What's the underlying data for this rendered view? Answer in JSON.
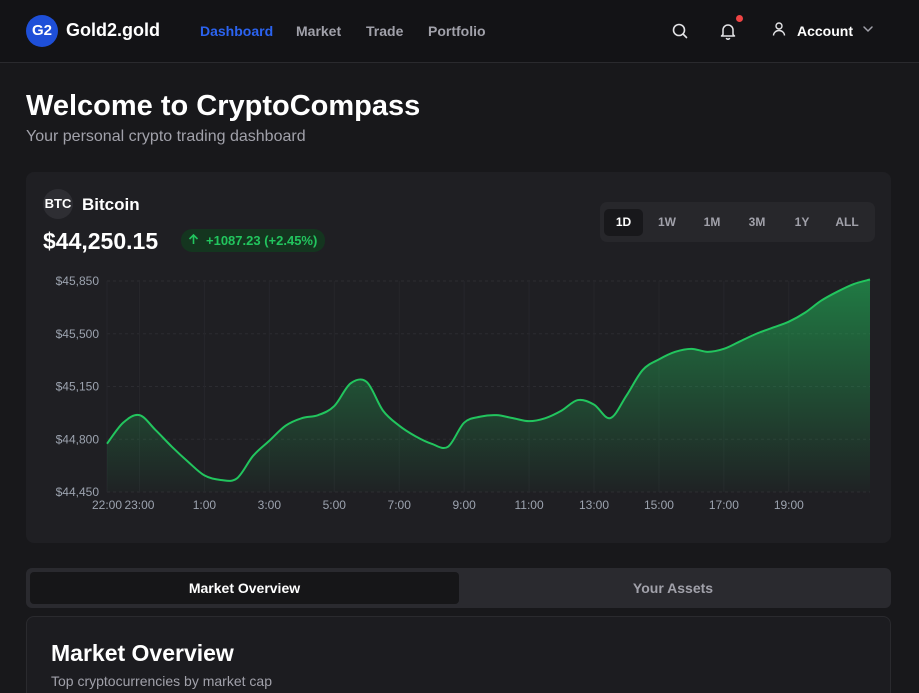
{
  "header": {
    "logo_badge": "G2",
    "brand": "Gold2.gold",
    "nav": [
      "Dashboard",
      "Market",
      "Trade",
      "Portfolio"
    ],
    "active_nav": "Dashboard",
    "icons": [
      "search-icon",
      "bell-icon",
      "user-icon",
      "chevron-down-icon"
    ],
    "account_label": "Account",
    "colors": {
      "accent": "#2b63f0",
      "notification_dot": "#ef4444"
    }
  },
  "welcome": {
    "title": "Welcome to CryptoCompass",
    "subtitle": "Your personal crypto trading dashboard"
  },
  "coin": {
    "symbol": "BTC",
    "name": "Bitcoin",
    "price": "$44,250.15",
    "change": "+1087.23 (+2.45%)",
    "change_icon": "arrow-up-icon",
    "change_color": "#22c55e"
  },
  "ranges": {
    "options": [
      "1D",
      "1W",
      "1M",
      "3M",
      "1Y",
      "ALL"
    ],
    "selected": "1D"
  },
  "chart_data": {
    "type": "area",
    "title": "",
    "xlabel": "",
    "ylabel": "",
    "ytick_labels": [
      "$45,850",
      "$45,500",
      "$45,150",
      "$44,800",
      "$44,450"
    ],
    "yticks": [
      45850,
      45500,
      45150,
      44800,
      44450
    ],
    "ylim": [
      44450,
      45850
    ],
    "xtick_labels": [
      "23:00",
      "1:00",
      "3:00",
      "5:00",
      "7:00",
      "9:00",
      "11:00",
      "13:00",
      "15:00",
      "17:00",
      "19:00",
      "22:00"
    ],
    "x": [
      22.5,
      23.0,
      23.5,
      24.0,
      24.5,
      25.0,
      25.5,
      26.0,
      26.5,
      27.0,
      27.5,
      28.0,
      28.5,
      29.0,
      29.5,
      30.0,
      30.5,
      31.0,
      31.5,
      32.0,
      32.5,
      33.0,
      33.5,
      34.0,
      34.5,
      35.0,
      35.5,
      36.0,
      36.5,
      37.0,
      37.5,
      38.0,
      38.5,
      39.0,
      39.5,
      40.0,
      40.5,
      41.0,
      41.5,
      42.0,
      42.5,
      43.0,
      43.5,
      44.0,
      44.5,
      45.0,
      45.5,
      46.0
    ],
    "values": [
      44770,
      44910,
      44960,
      44860,
      44750,
      44650,
      44560,
      44530,
      44540,
      44690,
      44790,
      44890,
      44940,
      44960,
      45020,
      45170,
      45180,
      44990,
      44890,
      44820,
      44770,
      44750,
      44910,
      44950,
      44960,
      44940,
      44920,
      44940,
      44990,
      45060,
      45030,
      44940,
      45090,
      45260,
      45330,
      45380,
      45400,
      45380,
      45400,
      45450,
      45500,
      45540,
      45580,
      45640,
      45720,
      45780,
      45830,
      45860
    ],
    "line_color": "#22c55e",
    "grid": true,
    "legend": "none"
  },
  "tabs": {
    "items": [
      "Market Overview",
      "Your Assets"
    ],
    "active": "Market Overview"
  },
  "market_overview": {
    "title": "Market Overview",
    "subtitle": "Top cryptocurrencies by market cap"
  }
}
